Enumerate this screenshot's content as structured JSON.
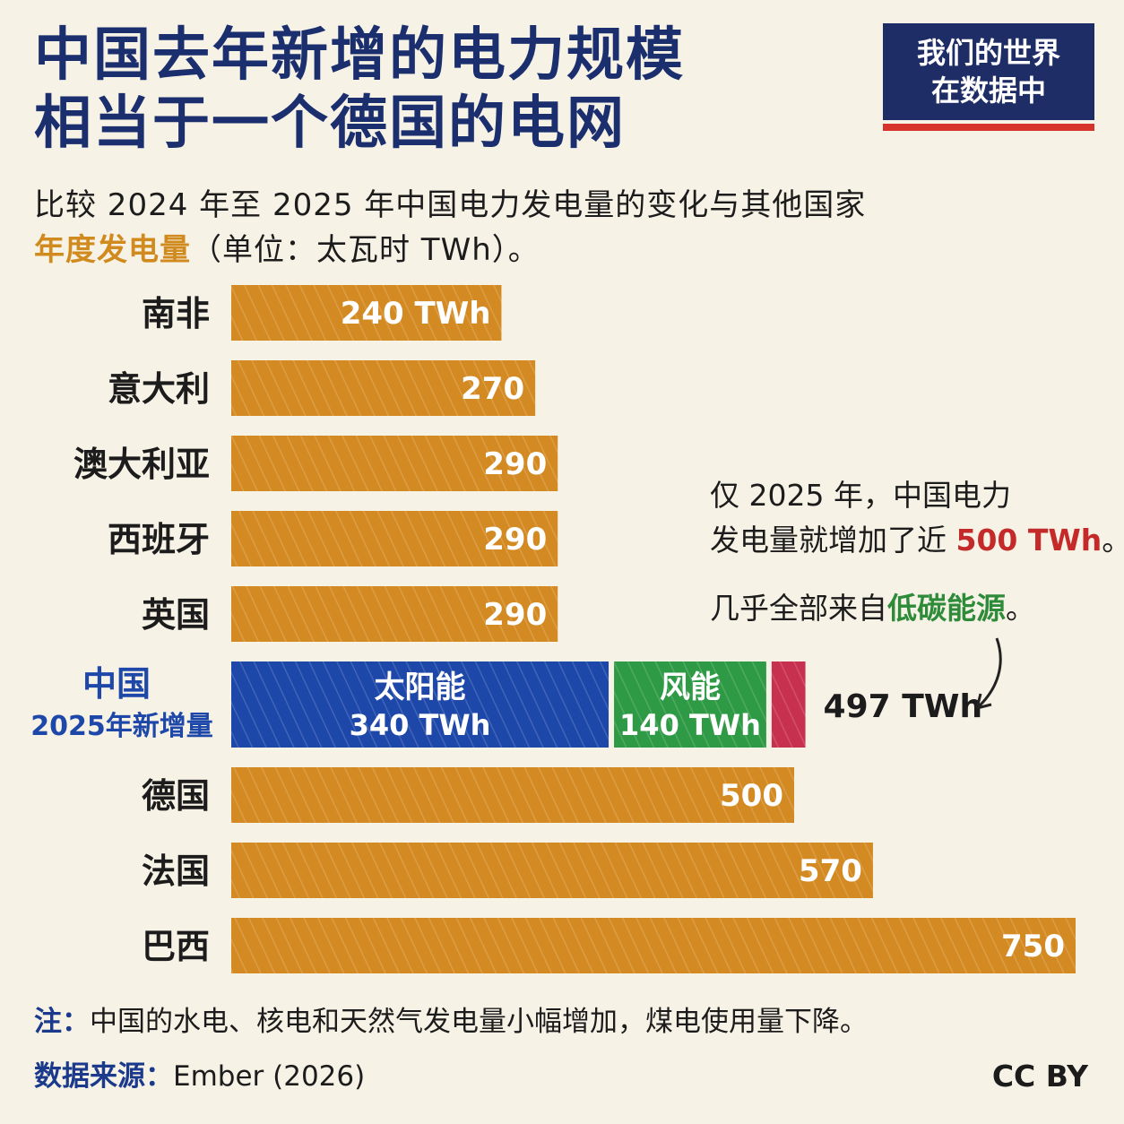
{
  "title": {
    "line1": "中国去年新增的电力规模",
    "line2": "相当于一个德国的电网"
  },
  "logo": {
    "line1": "我们的世界",
    "line2": "在数据中"
  },
  "subtitle": {
    "line1": "比较 2024 年至 2025 年中国电力发电量的变化与其他国家",
    "line2_accent": "年度发电量",
    "line2_rest": "（单位：太瓦时 TWh）。"
  },
  "annotation": {
    "line1": "仅 2025 年，中国电力",
    "line2_pre": "发电量就增加了近 ",
    "line2_red": "500 TWh",
    "line2_post": "。",
    "line3_pre": "几乎全部来自",
    "line3_green": "低碳能源",
    "line3_post": "。"
  },
  "note": {
    "label": "注：",
    "text": "中国的水电、核电和天然气发电量小幅增加，煤电使用量下降。"
  },
  "source": {
    "label": "数据来源：",
    "text": "Ember (2026)"
  },
  "license": "CC BY",
  "colors": {
    "country": "#d48a22",
    "solar": "#1d47a8",
    "wind": "#2f9a45",
    "other": "#c8304f",
    "title": "#1b2f6e"
  },
  "chart_data": {
    "type": "bar",
    "orientation": "horizontal",
    "unit": "TWh",
    "xlim": [
      0,
      750
    ],
    "categories": [
      "南非",
      "意大利",
      "澳大利亚",
      "西班牙",
      "英国",
      "中国 2025年新增量",
      "德国",
      "法国",
      "巴西"
    ],
    "countries": [
      {
        "name": "南非",
        "value": 240,
        "label": "240 TWh"
      },
      {
        "name": "意大利",
        "value": 270,
        "label": "270"
      },
      {
        "name": "澳大利亚",
        "value": 290,
        "label": "290"
      },
      {
        "name": "西班牙",
        "value": 290,
        "label": "290"
      },
      {
        "name": "英国",
        "value": 290,
        "label": "290"
      },
      {
        "name": "德国",
        "value": 500,
        "label": "500"
      },
      {
        "name": "法国",
        "value": 570,
        "label": "570"
      },
      {
        "name": "巴西",
        "value": 750,
        "label": "750"
      }
    ],
    "china": {
      "label_line1": "中国",
      "label_line2": "2025年新增量",
      "total_label": "497 TWh",
      "segments": [
        {
          "name": "太阳能",
          "value": 340,
          "label": "340 TWh",
          "color": "#1d47a8"
        },
        {
          "name": "风能",
          "value": 140,
          "label": "140 TWh",
          "color": "#2f9a45"
        },
        {
          "name": "",
          "value": 30,
          "label": "",
          "color": "#c8304f"
        }
      ]
    }
  }
}
